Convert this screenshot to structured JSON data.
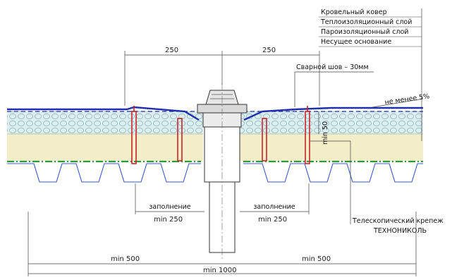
{
  "legend": {
    "items": [
      "Кровельный ковер",
      "Теплоизоляционный слой",
      "Пароизоляционный слой",
      "Несущее основание"
    ]
  },
  "labels": {
    "weld_seam": "Сварной шов – 30мм",
    "slope": "не менее 5%",
    "min50": "min 50",
    "fill_left": "заполнение",
    "fill_right": "заполнение",
    "fastener_line1": "Телескопический крепеж",
    "fastener_line2": "ТЕХНОНИКОЛЬ"
  },
  "dimensions": {
    "top_left": "250",
    "top_right": "250",
    "mid_left": "min 250",
    "mid_right": "min 250",
    "bottom_left": "min 500",
    "bottom_right": "min 500",
    "overall": "min 1000"
  },
  "colors": {
    "membrane": "#1f2fae",
    "vapor_barrier": "#2e9a3a",
    "insulation_upper": "#dbeef0",
    "insulation_lower": "#f3edc8",
    "fastener": "#c8242a",
    "deck": "#3a5bc7"
  }
}
